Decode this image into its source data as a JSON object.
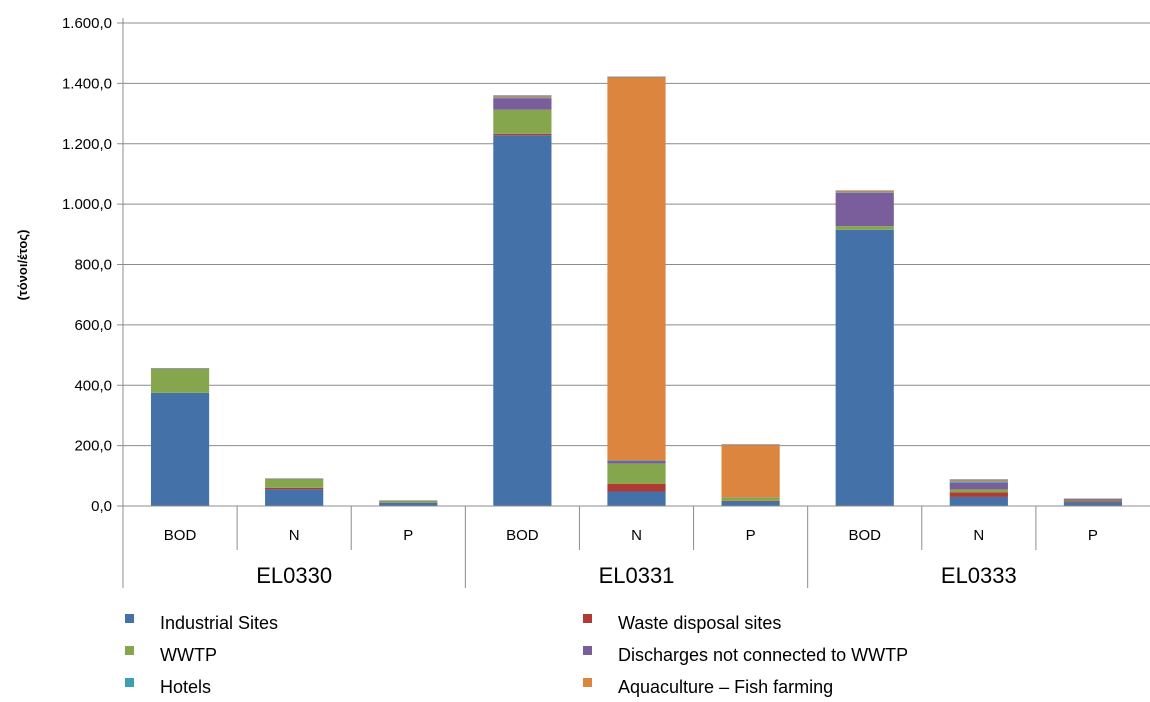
{
  "chart_data": {
    "type": "bar",
    "stacked": true,
    "title": "",
    "xlabel": "",
    "ylabel": "(τόνοι/έτος)",
    "ylim": [
      0,
      1600
    ],
    "yticks": [
      "0,0",
      "200,0",
      "400,0",
      "600,0",
      "800,0",
      "1.000,0",
      "1.200,0",
      "1.400,0",
      "1.600,0"
    ],
    "grid": true,
    "legend_position": "bottom",
    "groups": [
      {
        "name": "EL0330",
        "categories": [
          "BOD",
          "N",
          "P"
        ]
      },
      {
        "name": "EL0331",
        "categories": [
          "BOD",
          "N",
          "P"
        ]
      },
      {
        "name": "EL0333",
        "categories": [
          "BOD",
          "N",
          "P"
        ]
      }
    ],
    "series": [
      {
        "name": "Industrial Sites",
        "color": "#4472a8",
        "values": [
          375,
          55,
          10,
          1228,
          48,
          15,
          915,
          30,
          12
        ]
      },
      {
        "name": "Waste disposal sites",
        "color": "#b03a34",
        "values": [
          0,
          5,
          1,
          5,
          25,
          2,
          0,
          15,
          3
        ]
      },
      {
        "name": "WWTP",
        "color": "#86a64e",
        "values": [
          80,
          30,
          6,
          80,
          68,
          10,
          12,
          10,
          3
        ]
      },
      {
        "name": "Discharges not connected to WWTP",
        "color": "#7a5d9b",
        "values": [
          0,
          0,
          0,
          38,
          8,
          0,
          110,
          22,
          4
        ]
      },
      {
        "name": "Hotels",
        "color": "#3d9fb4",
        "values": [
          0,
          0,
          0,
          3,
          2,
          1,
          2,
          5,
          0
        ]
      },
      {
        "name": "Aquaculture – Fish farming",
        "color": "#dc853e",
        "values": [
          0,
          0,
          0,
          5,
          1270,
          175,
          5,
          5,
          1
        ]
      }
    ]
  }
}
